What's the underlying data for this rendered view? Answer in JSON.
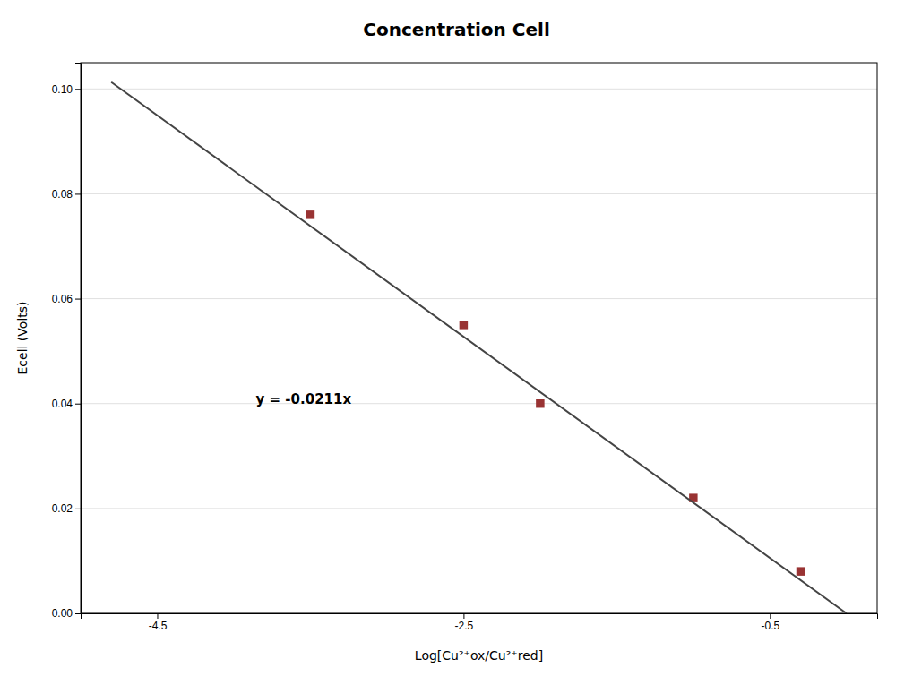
{
  "chart_data": {
    "type": "scatter",
    "title": "Concentration Cell",
    "x_label": "Log[Cu²⁺ox/Cu²⁺red]",
    "y_label": "Ecell (Volts)",
    "annotations": [
      "y = -0.0211x"
    ],
    "series": [
      {
        "type": "scatter",
        "color": "#993333",
        "marker": "square",
        "x": [
          -0.3,
          -1.0,
          -2.0,
          -2.5,
          -3.5
        ],
        "values": [
          0.008,
          0.022,
          0.04,
          0.055,
          0.076
        ]
      },
      {
        "type": "line",
        "color": "#444444",
        "line_style": "solid",
        "x": [
          -4.8,
          0.0
        ],
        "values": [
          0.10128,
          0.0
        ]
      }
    ],
    "xlim": [
      -5.0,
      0.2
    ],
    "xticks": [
      -0.5,
      -2.5,
      -4.5
    ],
    "ylim": [
      0.0,
      0.105
    ],
    "yticks": [
      {
        "value": 0.0,
        "label": "0.00"
      },
      0.02,
      0.04,
      0.06,
      0.08,
      {
        "value": 0.1,
        "label": "0.10"
      }
    ],
    "grid": true
  }
}
